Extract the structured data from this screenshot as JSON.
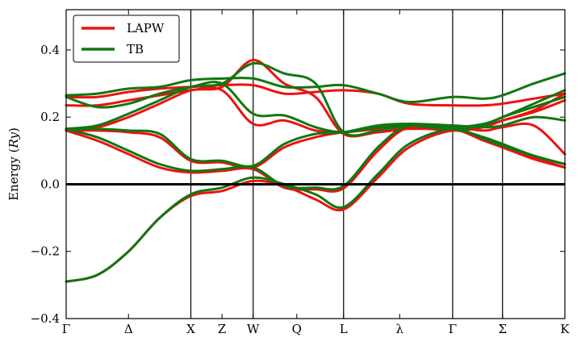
{
  "chart_data": {
    "type": "line",
    "title": "",
    "ylabel": "Energy (Ry)",
    "ylabel_parts": {
      "prefix": "Energy (",
      "italic": "Ry",
      "suffix": ")"
    },
    "xlim": [
      0,
      8
    ],
    "ylim": [
      -0.4,
      0.52
    ],
    "yticks": [
      {
        "value": 0.4,
        "label": "0.4"
      },
      {
        "value": 0.2,
        "label": "0.2"
      },
      {
        "value": 0.0,
        "label": "0.0"
      },
      {
        "value": -0.2,
        "label": "−0.2"
      },
      {
        "value": -0.4,
        "label": "−0.4"
      }
    ],
    "xticks": [
      {
        "value": 0,
        "label": "Γ"
      },
      {
        "value": 1,
        "label": "Δ"
      },
      {
        "value": 2,
        "label": "X"
      },
      {
        "value": 2.5,
        "label": "Z"
      },
      {
        "value": 3,
        "label": "W"
      },
      {
        "value": 3.7,
        "label": "Q"
      },
      {
        "value": 4.45,
        "label": "L"
      },
      {
        "value": 5.35,
        "label": "λ"
      },
      {
        "value": 6.2,
        "label": "Γ"
      },
      {
        "value": 7.0,
        "label": "Σ"
      },
      {
        "value": 8.0,
        "label": "K"
      }
    ],
    "vlines": [
      2,
      3,
      4.45,
      6.2,
      7.0
    ],
    "hline": 0.0,
    "legend": {
      "position": "top-left",
      "entries": [
        {
          "name": "LAPW",
          "color": "#ee1111"
        },
        {
          "name": "TB",
          "color": "#117711"
        }
      ]
    },
    "series": [
      {
        "name": "LAPW",
        "color": "#ee1111",
        "bands": [
          {
            "x": [
              0,
              0.5,
              1,
              1.5,
              2,
              2.5,
              3,
              3.5,
              4,
              4.45,
              5,
              5.5,
              6.2,
              6.7,
              7,
              7.5,
              8
            ],
            "y": [
              -0.29,
              -0.27,
              -0.2,
              -0.1,
              -0.035,
              -0.02,
              0.01,
              -0.005,
              -0.045,
              -0.075,
              0.02,
              0.11,
              0.16,
              0.13,
              0.11,
              0.08,
              0.05
            ]
          },
          {
            "x": [
              0,
              0.5,
              1,
              1.5,
              2,
              2.5,
              3,
              3.5,
              4,
              4.45,
              5,
              5.5,
              6.2,
              6.7,
              7,
              7.5,
              8
            ],
            "y": [
              0.16,
              0.13,
              0.09,
              0.05,
              0.035,
              0.04,
              0.045,
              -0.01,
              -0.015,
              -0.012,
              0.1,
              0.17,
              0.165,
              0.13,
              0.11,
              0.075,
              0.05
            ]
          },
          {
            "x": [
              0,
              0.5,
              1,
              1.5,
              2,
              2.5,
              3,
              3.5,
              4,
              4.45,
              5,
              5.5,
              6.2,
              6.7,
              7,
              7.5,
              8
            ],
            "y": [
              0.165,
              0.17,
              0.2,
              0.24,
              0.28,
              0.29,
              0.37,
              0.3,
              0.26,
              0.15,
              0.155,
              0.165,
              0.165,
              0.175,
              0.19,
              0.22,
              0.27
            ]
          },
          {
            "x": [
              0,
              0.5,
              1,
              1.5,
              2,
              2.5,
              3,
              3.5,
              4,
              4.45,
              5,
              5.5,
              6.2,
              6.7,
              7,
              7.5,
              8
            ],
            "y": [
              0.235,
              0.235,
              0.25,
              0.265,
              0.28,
              0.28,
              0.18,
              0.19,
              0.16,
              0.155,
              0.165,
              0.17,
              0.16,
              0.17,
              0.19,
              0.215,
              0.25
            ]
          },
          {
            "x": [
              0,
              0.5,
              1,
              1.5,
              2,
              2.5,
              3,
              3.5,
              4,
              4.45,
              5,
              5.5,
              6.2,
              6.7,
              7,
              7.5,
              8
            ],
            "y": [
              0.16,
              0.16,
              0.155,
              0.14,
              0.07,
              0.065,
              0.05,
              0.11,
              0.14,
              0.155,
              0.165,
              0.17,
              0.17,
              0.16,
              0.17,
              0.175,
              0.09
            ]
          },
          {
            "x": [
              0,
              0.5,
              1,
              1.5,
              2,
              2.5,
              3,
              3.5,
              4,
              4.45,
              5,
              5.5,
              6.2,
              6.7,
              7,
              7.5,
              8
            ],
            "y": [
              0.26,
              0.26,
              0.275,
              0.285,
              0.29,
              0.295,
              0.295,
              0.27,
              0.275,
              0.28,
              0.27,
              0.24,
              0.235,
              0.235,
              0.24,
              0.255,
              0.27
            ]
          }
        ]
      },
      {
        "name": "TB",
        "color": "#117711",
        "bands": [
          {
            "x": [
              0,
              0.5,
              1,
              1.5,
              2,
              2.5,
              3,
              3.5,
              4,
              4.45,
              5,
              5.5,
              6.2,
              6.7,
              7,
              7.5,
              8
            ],
            "y": [
              -0.29,
              -0.27,
              -0.2,
              -0.1,
              -0.03,
              -0.01,
              0.02,
              0.0,
              -0.03,
              -0.068,
              0.03,
              0.12,
              0.165,
              0.135,
              0.115,
              0.085,
              0.06
            ]
          },
          {
            "x": [
              0,
              0.5,
              1,
              1.5,
              2,
              2.5,
              3,
              3.5,
              4,
              4.45,
              5,
              5.5,
              6.2,
              6.7,
              7,
              7.5,
              8
            ],
            "y": [
              0.165,
              0.14,
              0.1,
              0.06,
              0.04,
              0.045,
              0.05,
              -0.005,
              -0.01,
              -0.005,
              0.11,
              0.175,
              0.165,
              0.14,
              0.12,
              0.085,
              0.06
            ]
          },
          {
            "x": [
              0,
              0.5,
              1,
              1.5,
              2,
              2.5,
              3,
              3.5,
              4,
              4.45,
              5,
              5.5,
              6.2,
              6.7,
              7,
              7.5,
              8
            ],
            "y": [
              0.165,
              0.175,
              0.21,
              0.25,
              0.29,
              0.3,
              0.36,
              0.33,
              0.3,
              0.155,
              0.16,
              0.175,
              0.17,
              0.18,
              0.2,
              0.24,
              0.28
            ]
          },
          {
            "x": [
              0,
              0.5,
              1,
              1.5,
              2,
              2.5,
              3,
              3.5,
              4,
              4.45,
              5,
              5.5,
              6.2,
              6.7,
              7,
              7.5,
              8
            ],
            "y": [
              0.26,
              0.23,
              0.24,
              0.27,
              0.29,
              0.3,
              0.21,
              0.205,
              0.17,
              0.155,
              0.17,
              0.175,
              0.165,
              0.175,
              0.2,
              0.23,
              0.26
            ]
          },
          {
            "x": [
              0,
              0.5,
              1,
              1.5,
              2,
              2.5,
              3,
              3.5,
              4,
              4.45,
              5,
              5.5,
              6.2,
              6.7,
              7,
              7.5,
              8
            ],
            "y": [
              0.165,
              0.165,
              0.16,
              0.15,
              0.075,
              0.07,
              0.055,
              0.12,
              0.15,
              0.155,
              0.175,
              0.18,
              0.175,
              0.17,
              0.175,
              0.2,
              0.19
            ]
          },
          {
            "x": [
              0,
              0.5,
              1,
              1.5,
              2,
              2.5,
              3,
              3.5,
              4,
              4.45,
              5,
              5.5,
              6.2,
              6.7,
              7,
              7.5,
              8
            ],
            "y": [
              0.265,
              0.27,
              0.285,
              0.29,
              0.31,
              0.315,
              0.315,
              0.29,
              0.29,
              0.295,
              0.27,
              0.245,
              0.26,
              0.255,
              0.265,
              0.3,
              0.33
            ]
          }
        ]
      }
    ]
  }
}
